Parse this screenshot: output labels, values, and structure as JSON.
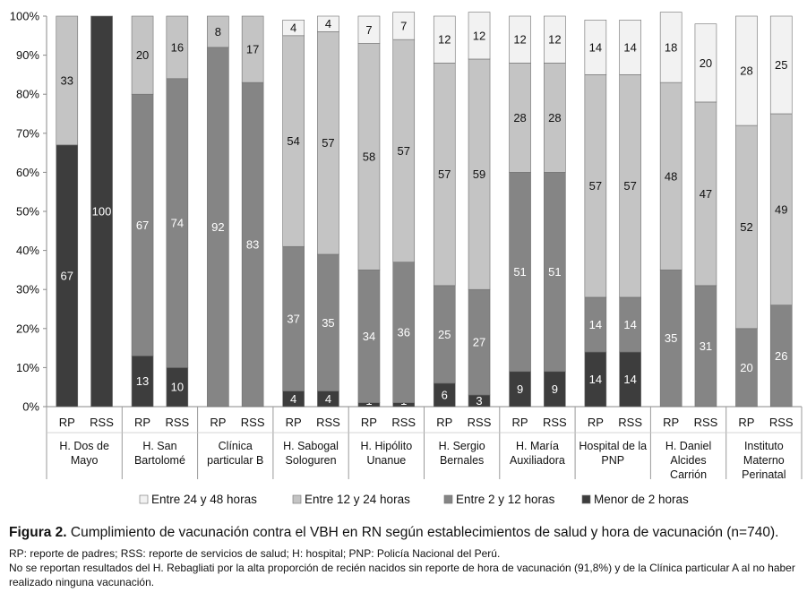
{
  "chart_data": {
    "type": "bar",
    "stacked": "percent",
    "ylim": [
      0,
      100
    ],
    "yticks": [
      "0%",
      "10%",
      "20%",
      "30%",
      "40%",
      "50%",
      "60%",
      "70%",
      "80%",
      "90%",
      "100%"
    ],
    "groups": [
      {
        "name": "H. Dos de Mayo",
        "lines": [
          "H. Dos de",
          "Mayo"
        ],
        "bars": [
          {
            "label": "RP",
            "values": [
              67,
              0,
              33,
              0
            ],
            "labels": [
              "67",
              "",
              "33",
              ""
            ]
          },
          {
            "label": "RSS",
            "values": [
              100,
              0,
              0,
              0
            ],
            "labels": [
              "100",
              "",
              "",
              ""
            ]
          }
        ]
      },
      {
        "name": "H. San Bartolomé",
        "lines": [
          "H. San",
          "Bartolomé"
        ],
        "bars": [
          {
            "label": "RP",
            "values": [
              13,
              67,
              20,
              0
            ],
            "labels": [
              "13",
              "67",
              "20",
              ""
            ]
          },
          {
            "label": "RSS",
            "values": [
              10,
              74,
              16,
              0
            ],
            "labels": [
              "10",
              "74",
              "16",
              ""
            ]
          }
        ]
      },
      {
        "name": "Clínica particular B",
        "lines": [
          "Clínica",
          "particular B"
        ],
        "bars": [
          {
            "label": "RP",
            "values": [
              0,
              92,
              8,
              0
            ],
            "labels": [
              "",
              "92",
              "8",
              ""
            ]
          },
          {
            "label": "RSS",
            "values": [
              0,
              83,
              17,
              0
            ],
            "labels": [
              "",
              "83",
              "17",
              ""
            ]
          }
        ]
      },
      {
        "name": "H. Sabogal Sologuren",
        "lines": [
          "H. Sabogal",
          "Sologuren"
        ],
        "bars": [
          {
            "label": "RP",
            "values": [
              4,
              37,
              54,
              4
            ],
            "labels": [
              "4",
              "37",
              "54",
              "4"
            ]
          },
          {
            "label": "RSS",
            "values": [
              4,
              35,
              57,
              4
            ],
            "labels": [
              "4",
              "35",
              "57",
              "4"
            ]
          }
        ]
      },
      {
        "name": "H. Hipólito Unanue",
        "lines": [
          "H. Hipólito",
          "Unanue"
        ],
        "bars": [
          {
            "label": "RP",
            "values": [
              1,
              34,
              58,
              7
            ],
            "labels": [
              "1",
              "34",
              "58",
              "7"
            ]
          },
          {
            "label": "RSS",
            "values": [
              1,
              36,
              57,
              7
            ],
            "labels": [
              "1",
              "36",
              "57",
              "7"
            ]
          }
        ]
      },
      {
        "name": "H. Sergio Bernales",
        "lines": [
          "H. Sergio",
          "Bernales"
        ],
        "bars": [
          {
            "label": "RP",
            "values": [
              6,
              25,
              57,
              12
            ],
            "labels": [
              "6",
              "25",
              "57",
              "12"
            ]
          },
          {
            "label": "RSS",
            "values": [
              3,
              27,
              59,
              12
            ],
            "labels": [
              "3",
              "27",
              "59",
              "12"
            ]
          }
        ]
      },
      {
        "name": "H. María Auxiliadora",
        "lines": [
          "H. María",
          "Auxiliadora"
        ],
        "bars": [
          {
            "label": "RP",
            "values": [
              9,
              51,
              28,
              12
            ],
            "labels": [
              "9",
              "51",
              "28",
              "12"
            ]
          },
          {
            "label": "RSS",
            "values": [
              9,
              51,
              28,
              12
            ],
            "labels": [
              "9",
              "51",
              "28",
              "12"
            ]
          }
        ]
      },
      {
        "name": "Hospital de la PNP",
        "lines": [
          "Hospital de la",
          "PNP"
        ],
        "bars": [
          {
            "label": "RP",
            "values": [
              14,
              14,
              57,
              14
            ],
            "labels": [
              "14",
              "14",
              "57",
              "14"
            ]
          },
          {
            "label": "RSS",
            "values": [
              14,
              14,
              57,
              14
            ],
            "labels": [
              "14",
              "14",
              "57",
              "14"
            ]
          }
        ]
      },
      {
        "name": "H. Daniel Alcides Carrión",
        "lines": [
          "H. Daniel",
          "Alcides",
          "Carrión"
        ],
        "bars": [
          {
            "label": "RP",
            "values": [
              0,
              35,
              48,
              18
            ],
            "labels": [
              "",
              "35",
              "48",
              "18"
            ]
          },
          {
            "label": "RSS",
            "values": [
              0,
              31,
              47,
              20
            ],
            "labels": [
              "",
              "31",
              "47",
              "20"
            ]
          }
        ]
      },
      {
        "name": "Instituto Materno Perinatal",
        "lines": [
          "Instituto",
          "Materno",
          "Perinatal"
        ],
        "bars": [
          {
            "label": "RP",
            "values": [
              0,
              20,
              52,
              28
            ],
            "labels": [
              "",
              "20",
              "52",
              "28"
            ]
          },
          {
            "label": "RSS",
            "values": [
              0,
              26,
              49,
              25
            ],
            "labels": [
              "",
              "26",
              "49",
              "25"
            ]
          }
        ]
      }
    ],
    "series": [
      {
        "name": "Menor de 2  horas",
        "color": "#3d3d3d",
        "label_color": "#ffffff"
      },
      {
        "name": "Entre 2 y 12  horas",
        "color": "#858585",
        "label_color": "#ffffff"
      },
      {
        "name": "Entre 12 y 24 horas",
        "color": "#c4c4c4",
        "label_color": "#111111"
      },
      {
        "name": "Entre 24 y 48 horas",
        "color": "#f2f2f2",
        "label_color": "#111111"
      }
    ],
    "legend_order": [
      3,
      2,
      1,
      0
    ],
    "legend_position": "bottom",
    "grid": false
  },
  "caption": {
    "figure_label": "Figura 2.",
    "title": " Cumplimiento de vacunación contra el VBH en RN según establecimientos de salud y hora de vacunación (n=740).",
    "note_1": "RP: reporte de padres; RSS: reporte de servicios de salud; H: hospital; PNP: Policía Nacional del Perú.",
    "note_2": "No se reportan resultados del H. Rebagliati por la alta proporción de recién nacidos sin reporte de hora de vacunación (91,8%) y de la Clínica particular A al no haber realizado ninguna vacunación."
  }
}
